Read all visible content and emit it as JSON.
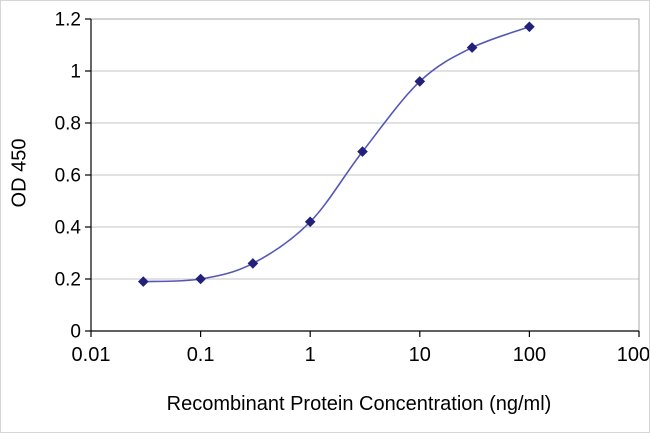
{
  "chart_data": {
    "type": "line",
    "title": "",
    "xlabel": "Recombinant Protein Concentration (ng/ml)",
    "ylabel": "OD 450",
    "x_scale": "log",
    "xlim": [
      0.01,
      1000
    ],
    "ylim": [
      0,
      1.2
    ],
    "x_ticks": [
      0.01,
      0.1,
      1,
      10,
      100,
      1000
    ],
    "x_tick_labels": [
      "0.01",
      "0.1",
      "1",
      "10",
      "100",
      "1000"
    ],
    "y_ticks": [
      0,
      0.2,
      0.4,
      0.6,
      0.8,
      1,
      1.2
    ],
    "y_tick_labels": [
      "0",
      "0.2",
      "0.4",
      "0.6",
      "0.8",
      "1",
      "1.2"
    ],
    "grid": "horizontal",
    "legend": "none",
    "colors": {
      "line": "#5557b8",
      "marker": "#23207a",
      "grid": "#c6c6c6",
      "plot_border": "#a9a9a9",
      "axis": "#000000"
    },
    "series": [
      {
        "name": "OD 450",
        "marker": "diamond",
        "x": [
          0.03,
          0.1,
          0.3,
          1,
          3,
          10,
          30,
          100
        ],
        "y": [
          0.19,
          0.2,
          0.26,
          0.42,
          0.69,
          0.96,
          1.09,
          1.17
        ]
      }
    ]
  }
}
